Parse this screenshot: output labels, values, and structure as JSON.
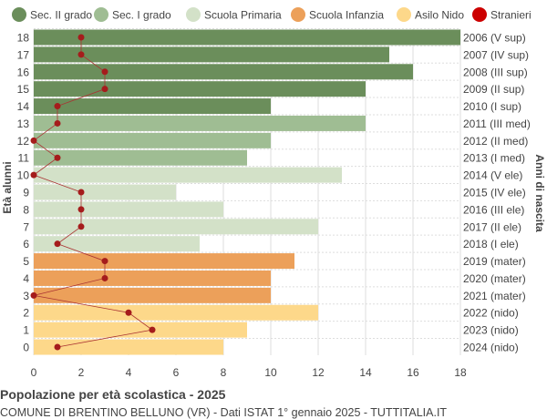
{
  "chart_data": {
    "type": "bar",
    "orientation": "horizontal",
    "title": "Popolazione per età scolastica - 2025",
    "subtitle": "COMUNE DI BRENTINO BELLUNO (VR) - Dati ISTAT 1° gennaio 2025 - TUTTITALIA.IT",
    "ylabel": "Età alunni",
    "ylabel_right": "Anni di nascita",
    "xlim": [
      0,
      18
    ],
    "xticks": [
      0,
      2,
      4,
      6,
      8,
      10,
      12,
      14,
      16,
      18
    ],
    "grid": true,
    "legend_position": "top",
    "legend": [
      {
        "name": "Sec. II grado",
        "color": "#6b8e5b"
      },
      {
        "name": "Sec. I grado",
        "color": "#9fbd93"
      },
      {
        "name": "Scuola Primaria",
        "color": "#d3e1c8"
      },
      {
        "name": "Scuola Infanzia",
        "color": "#eca05a"
      },
      {
        "name": "Asilo Nido",
        "color": "#fdd88a"
      },
      {
        "name": "Stranieri",
        "color": "#cc0000"
      }
    ],
    "rows": [
      {
        "age": 18,
        "birth": "2006 (V sup)",
        "value": 18,
        "stranieri": 2,
        "group": 0
      },
      {
        "age": 17,
        "birth": "2007 (IV sup)",
        "value": 15,
        "stranieri": 2,
        "group": 0
      },
      {
        "age": 16,
        "birth": "2008 (III sup)",
        "value": 16,
        "stranieri": 3,
        "group": 0
      },
      {
        "age": 15,
        "birth": "2009 (II sup)",
        "value": 14,
        "stranieri": 3,
        "group": 0
      },
      {
        "age": 14,
        "birth": "2010 (I sup)",
        "value": 10,
        "stranieri": 1,
        "group": 0
      },
      {
        "age": 13,
        "birth": "2011 (III med)",
        "value": 14,
        "stranieri": 1,
        "group": 1
      },
      {
        "age": 12,
        "birth": "2012 (II med)",
        "value": 10,
        "stranieri": 0,
        "group": 1
      },
      {
        "age": 11,
        "birth": "2013 (I med)",
        "value": 9,
        "stranieri": 1,
        "group": 1
      },
      {
        "age": 10,
        "birth": "2014 (V ele)",
        "value": 13,
        "stranieri": 0,
        "group": 2
      },
      {
        "age": 9,
        "birth": "2015 (IV ele)",
        "value": 6,
        "stranieri": 2,
        "group": 2
      },
      {
        "age": 8,
        "birth": "2016 (III ele)",
        "value": 8,
        "stranieri": 2,
        "group": 2
      },
      {
        "age": 7,
        "birth": "2017 (II ele)",
        "value": 12,
        "stranieri": 2,
        "group": 2
      },
      {
        "age": 6,
        "birth": "2018 (I ele)",
        "value": 7,
        "stranieri": 1,
        "group": 2
      },
      {
        "age": 5,
        "birth": "2019 (mater)",
        "value": 11,
        "stranieri": 3,
        "group": 3
      },
      {
        "age": 4,
        "birth": "2020 (mater)",
        "value": 10,
        "stranieri": 3,
        "group": 3
      },
      {
        "age": 3,
        "birth": "2021 (mater)",
        "value": 10,
        "stranieri": 0,
        "group": 3
      },
      {
        "age": 2,
        "birth": "2022 (nido)",
        "value": 12,
        "stranieri": 4,
        "group": 4
      },
      {
        "age": 1,
        "birth": "2023 (nido)",
        "value": 9,
        "stranieri": 5,
        "group": 4
      },
      {
        "age": 0,
        "birth": "2024 (nido)",
        "value": 8,
        "stranieri": 1,
        "group": 4
      }
    ]
  }
}
